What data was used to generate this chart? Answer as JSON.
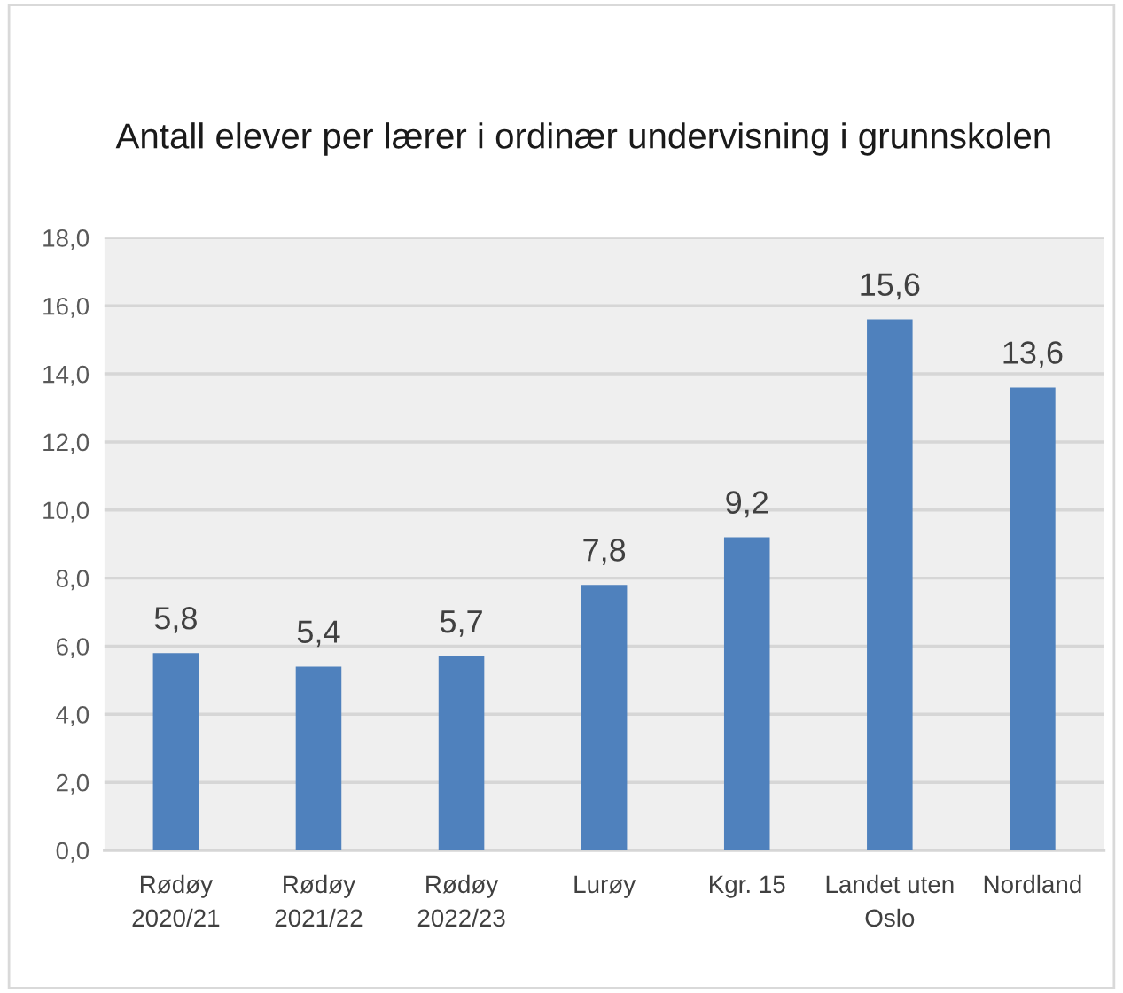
{
  "chart_data": {
    "type": "bar",
    "title": "Antall elever per lærer i ordinær undervisning i grunnskolen",
    "categories": [
      "Rødøy\n2020/21",
      "Rødøy\n2021/22",
      "Rødøy\n2022/23",
      "Lurøy",
      "Kgr. 15",
      "Landet uten\nOslo",
      "Nordland"
    ],
    "values": [
      5.8,
      5.4,
      5.7,
      7.8,
      9.2,
      15.6,
      13.6
    ],
    "value_labels": [
      "5,8",
      "5,4",
      "5,7",
      "7,8",
      "9,2",
      "15,6",
      "13,6"
    ],
    "color": "#4f81bd",
    "ylim": [
      0,
      18
    ],
    "yticks": [
      {
        "value": 0,
        "label": "0,0"
      },
      {
        "value": 2,
        "label": "2,0"
      },
      {
        "value": 4,
        "label": "4,0"
      },
      {
        "value": 6,
        "label": "6,0"
      },
      {
        "value": 8,
        "label": "8,0"
      },
      {
        "value": 10,
        "label": "10,0"
      },
      {
        "value": 12,
        "label": "12,0"
      },
      {
        "value": 14,
        "label": "14,0"
      },
      {
        "value": 16,
        "label": "16,0"
      },
      {
        "value": 18,
        "label": "18,0"
      }
    ],
    "grid": "y",
    "legend": false
  }
}
